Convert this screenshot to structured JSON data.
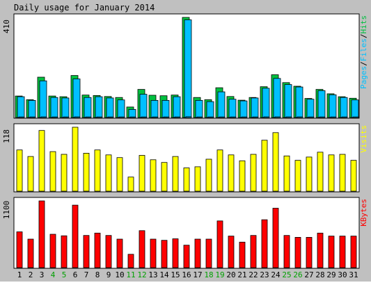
{
  "chart_data": {
    "type": "bar",
    "title": "Daily usage for January 2014",
    "categories": [
      "1",
      "2",
      "3",
      "4",
      "5",
      "6",
      "7",
      "8",
      "9",
      "10",
      "11",
      "12",
      "13",
      "14",
      "15",
      "16",
      "17",
      "18",
      "19",
      "20",
      "21",
      "22",
      "23",
      "24",
      "25",
      "26",
      "27",
      "28",
      "29",
      "30",
      "31"
    ],
    "weekend_days": [
      "4",
      "5",
      "11",
      "12",
      "18",
      "19",
      "25",
      "26"
    ],
    "colors": {
      "background": "#c0c0c0",
      "plot": "#ffffff",
      "hits": "#00c040",
      "files": "#00c0ff",
      "visits": "#ffff00",
      "kbytes": "#ff0000",
      "weekend_label": "#00a000",
      "weekday_label": "#000000"
    },
    "panels": [
      {
        "id": "pages-files-hits",
        "max_label": "410",
        "ylim": [
          0,
          410
        ],
        "legend": [
          {
            "text": "Pages",
            "color": "#00c0ff"
          },
          {
            "text": "Files",
            "color": "#00c0ff"
          },
          {
            "text": "Hits",
            "color": "#00c040"
          }
        ],
        "series": [
          {
            "name": "Hits",
            "color": "#00c040",
            "values": [
              88,
              73,
              165,
              88,
              85,
              172,
              92,
              90,
              86,
              82,
              43,
              115,
              91,
              89,
              92,
              410,
              82,
              73,
              122,
              86,
              71,
              82,
              126,
              175,
              143,
              128,
              78,
              115,
              97,
              85,
              79
            ]
          },
          {
            "name": "Files",
            "color": "#00c0ff",
            "values": [
              85,
              70,
              150,
              82,
              80,
              158,
              82,
              85,
              80,
              72,
              33,
              95,
              70,
              70,
              85,
              400,
              70,
              65,
              105,
              75,
              68,
              80,
              120,
              160,
              135,
              125,
              75,
              110,
              93,
              82,
              72
            ]
          },
          {
            "name": "Pages",
            "color": "#00c0ff",
            "values": [
              2,
              2,
              3,
              2,
              2,
              3,
              2,
              2,
              2,
              2,
              1,
              2,
              2,
              2,
              2,
              4,
              2,
              2,
              2,
              2,
              2,
              2,
              3,
              3,
              3,
              3,
              2,
              2,
              2,
              2,
              2
            ]
          }
        ]
      },
      {
        "id": "visits",
        "max_label": "118",
        "ylim": [
          0,
          118
        ],
        "legend": [
          {
            "text": "Visits",
            "color": "#ffff00"
          }
        ],
        "series": [
          {
            "name": "Visits",
            "color": "#ffff00",
            "values": [
              76,
              64,
              112,
              73,
              68,
              118,
              70,
              76,
              67,
              62,
              26,
              66,
              58,
              53,
              64,
              43,
              45,
              59,
              76,
              67,
              56,
              68,
              94,
              108,
              65,
              57,
              63,
              72,
              67,
              68,
              57
            ]
          }
        ]
      },
      {
        "id": "kbytes",
        "max_label": "1100",
        "ylim": [
          0,
          1100
        ],
        "legend": [
          {
            "text": "KBytes",
            "color": "#ff0000"
          }
        ],
        "series": [
          {
            "name": "KBytes",
            "color": "#ff0000",
            "values": [
              590,
              470,
              1100,
              550,
              525,
              1030,
              530,
              570,
              530,
              470,
              220,
              610,
              470,
              450,
              475,
              370,
              470,
              470,
              770,
              520,
              420,
              530,
              790,
              980,
              530,
              500,
              500,
              570,
              520,
              520,
              520
            ]
          }
        ]
      }
    ]
  }
}
